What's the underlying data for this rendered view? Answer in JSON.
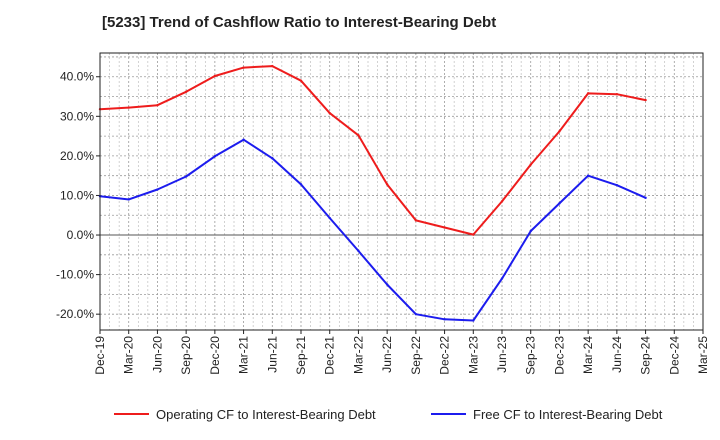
{
  "title": "[5233]  Trend of Cashflow Ratio to Interest-Bearing Debt",
  "chart_data": {
    "type": "line",
    "title": "[5233]  Trend of Cashflow Ratio to Interest-Bearing Debt",
    "categories": [
      "Dec-19",
      "Mar-20",
      "Jun-20",
      "Sep-20",
      "Dec-20",
      "Mar-21",
      "Jun-21",
      "Sep-21",
      "Dec-21",
      "Mar-22",
      "Jun-22",
      "Sep-22",
      "Dec-22",
      "Mar-23",
      "Jun-23",
      "Sep-23",
      "Dec-23",
      "Mar-24",
      "Jun-24",
      "Sep-24",
      "Dec-24",
      "Mar-25"
    ],
    "y_ticks": [
      "40.0%",
      "30.0%",
      "20.0%",
      "10.0%",
      "0.0%",
      "-10.0%",
      "-20.0%"
    ],
    "y_tick_values": [
      40,
      30,
      20,
      10,
      0,
      -10,
      -20
    ],
    "ylim": [
      -24,
      46
    ],
    "unit": "%",
    "grid": true,
    "legend_position": "bottom",
    "series": [
      {
        "name": "Operating CF to Interest-Bearing Debt",
        "color": "#ee1c1c",
        "values": [
          31.8,
          32.2,
          32.8,
          36.2,
          40.2,
          42.3,
          42.7,
          39.0,
          30.8,
          25.2,
          12.8,
          3.7,
          1.9,
          0.1,
          8.5,
          17.8,
          26.2,
          35.8,
          35.6,
          34.1,
          null,
          null
        ]
      },
      {
        "name": "Free CF to Interest-Bearing Debt",
        "color": "#1c1cee",
        "values": [
          9.8,
          9.0,
          11.5,
          14.8,
          19.9,
          24.1,
          19.4,
          12.8,
          4.3,
          -4.0,
          -12.5,
          -20.0,
          -21.3,
          -21.6,
          -11.0,
          1.0,
          8.0,
          15.0,
          12.6,
          9.4,
          null,
          null
        ]
      }
    ]
  }
}
